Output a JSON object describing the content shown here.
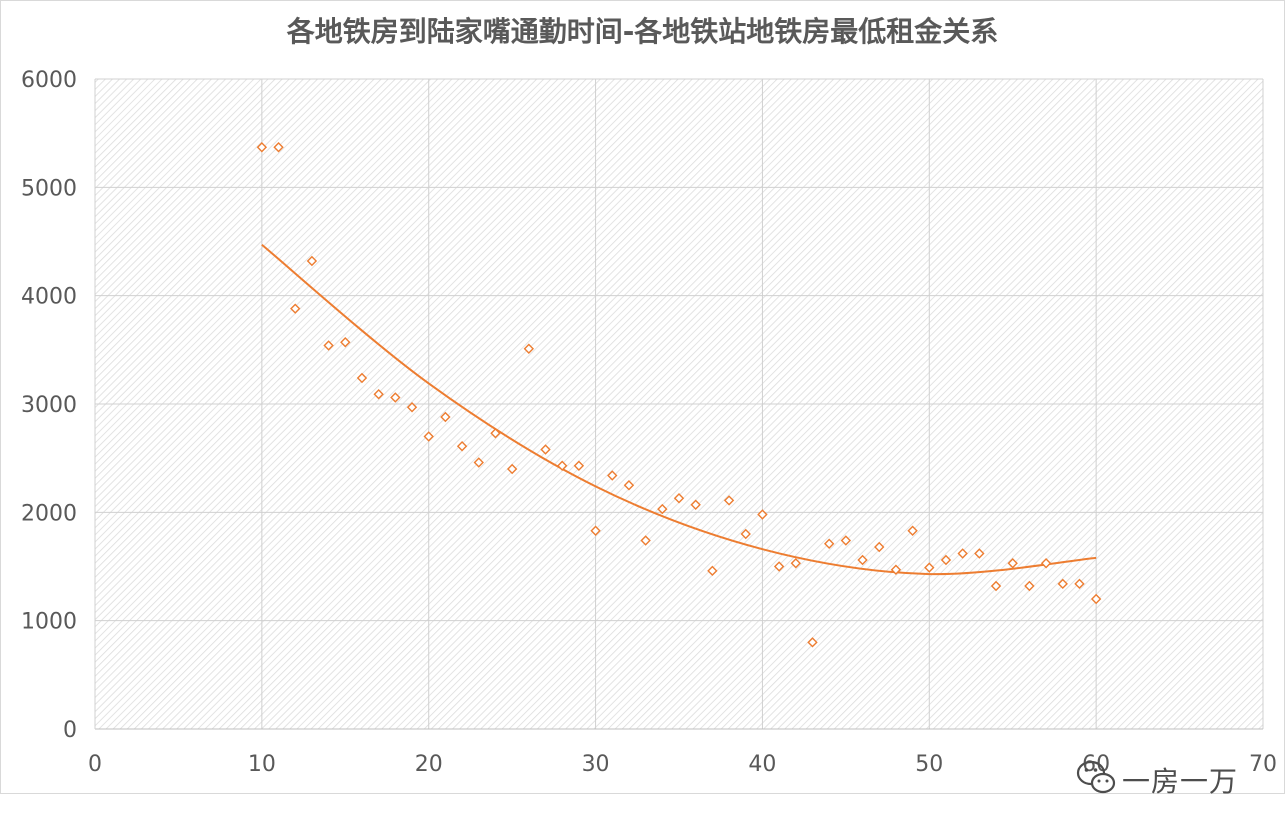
{
  "chart_data": {
    "type": "scatter",
    "title": "各地铁房到陆家嘴通勤时间-各地铁站地铁房最低租金关系",
    "xlabel": "",
    "ylabel": "",
    "xlim": [
      0,
      70
    ],
    "ylim": [
      0,
      6000
    ],
    "xticks": [
      "0",
      "10",
      "20",
      "30",
      "40",
      "50",
      "60",
      "70"
    ],
    "yticks": [
      "0",
      "1000",
      "2000",
      "3000",
      "4000",
      "5000",
      "6000"
    ],
    "grid": true,
    "legend": "none",
    "marker": "diamond-outline",
    "series": [
      {
        "color": "#ED7D31",
        "points": [
          [
            10,
            5370
          ],
          [
            11,
            5370
          ],
          [
            12,
            3880
          ],
          [
            13,
            4320
          ],
          [
            14,
            3540
          ],
          [
            15,
            3570
          ],
          [
            16,
            3240
          ],
          [
            17,
            3090
          ],
          [
            18,
            3060
          ],
          [
            19,
            2970
          ],
          [
            20,
            2700
          ],
          [
            21,
            2880
          ],
          [
            22,
            2610
          ],
          [
            23,
            2460
          ],
          [
            24,
            2730
          ],
          [
            25,
            2400
          ],
          [
            26,
            3510
          ],
          [
            27,
            2580
          ],
          [
            28,
            2430
          ],
          [
            29,
            2430
          ],
          [
            30,
            1830
          ],
          [
            31,
            2340
          ],
          [
            32,
            2250
          ],
          [
            33,
            1740
          ],
          [
            34,
            2030
          ],
          [
            35,
            2130
          ],
          [
            36,
            2070
          ],
          [
            37,
            1460
          ],
          [
            38,
            2110
          ],
          [
            39,
            1800
          ],
          [
            40,
            1980
          ],
          [
            41,
            1500
          ],
          [
            42,
            1530
          ],
          [
            43,
            800
          ],
          [
            44,
            1710
          ],
          [
            45,
            1740
          ],
          [
            46,
            1560
          ],
          [
            47,
            1680
          ],
          [
            48,
            1470
          ],
          [
            49,
            1830
          ],
          [
            50,
            1490
          ],
          [
            51,
            1560
          ],
          [
            52,
            1620
          ],
          [
            53,
            1620
          ],
          [
            54,
            1320
          ],
          [
            55,
            1530
          ],
          [
            56,
            1320
          ],
          [
            57,
            1530
          ],
          [
            58,
            1340
          ],
          [
            59,
            1340
          ],
          [
            60,
            1200
          ]
        ]
      }
    ],
    "trendline": {
      "type": "polynomial",
      "color": "#ED7D31",
      "x_range": [
        10,
        60
      ],
      "points": [
        [
          10,
          4470
        ],
        [
          20,
          3190
        ],
        [
          30,
          2240
        ],
        [
          40,
          1660
        ],
        [
          50,
          1430
        ],
        [
          60,
          1580
        ]
      ]
    }
  },
  "watermark": {
    "icon": "wechat-icon",
    "text": "一房一万"
  }
}
